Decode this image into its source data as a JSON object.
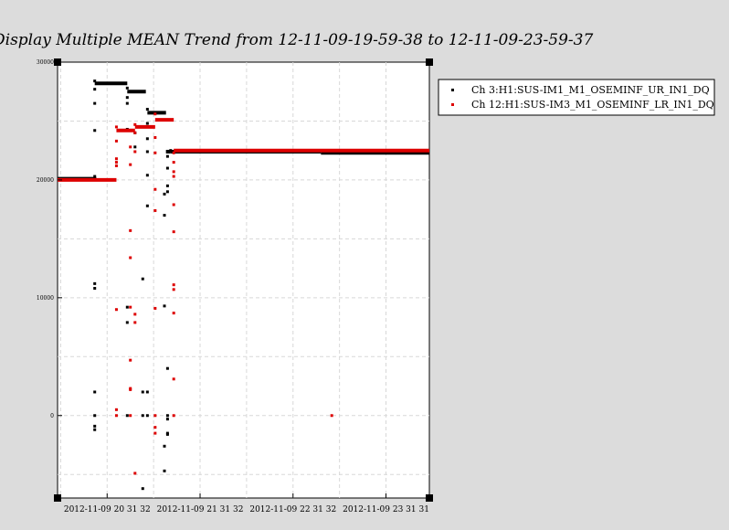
{
  "chart_data": {
    "type": "scatter",
    "title": "Display Multiple MEAN Trend from 12-11-09-19-59-38 to 12-11-09-23-59-37",
    "xlabel": "",
    "ylabel": "",
    "x_tick_labels": [
      "2012-11-09 20 31 32",
      "2012-11-09 21 31 32",
      "2012-11-09 22 31 32",
      "2012-11-09 23 31 31"
    ],
    "x_ticks_minutes": [
      32,
      92,
      152,
      212
    ],
    "xlim_minutes": [
      0,
      240
    ],
    "y_ticks": [
      0,
      10000,
      20000,
      30000
    ],
    "y_tick_labels": [
      "0",
      "10000",
      "20000",
      "30000"
    ],
    "ylim": [
      -7000,
      30000
    ],
    "grid": true,
    "legend_position": "outside-top-right",
    "series": [
      {
        "name": "Ch 3:H1:SUS-IM1_M1_OSEMINF_UR_IN1_DQ",
        "color": "#000000",
        "segments": [
          {
            "x0": 0,
            "x1": 25,
            "y": 20100
          },
          {
            "x0": 24,
            "x1": 45,
            "y": 28200
          },
          {
            "x0": 45,
            "x1": 57,
            "y": 27500
          },
          {
            "x0": 58,
            "x1": 70,
            "y": 25700
          },
          {
            "x0": 70,
            "x1": 73,
            "y": 22400
          },
          {
            "x0": 73,
            "x1": 170,
            "y": 22400
          },
          {
            "x0": 170,
            "x1": 240,
            "y": 22300
          }
        ],
        "points": [
          [
            24,
            28400
          ],
          [
            24,
            27700
          ],
          [
            24,
            26500
          ],
          [
            24,
            24200
          ],
          [
            24,
            20300
          ],
          [
            24,
            11200
          ],
          [
            24,
            10800
          ],
          [
            24,
            2000
          ],
          [
            24,
            0
          ],
          [
            24,
            -900
          ],
          [
            24,
            -1200
          ],
          [
            45,
            27800
          ],
          [
            45,
            27000
          ],
          [
            45,
            26500
          ],
          [
            45,
            24300
          ],
          [
            45,
            9200
          ],
          [
            45,
            7900
          ],
          [
            45,
            0
          ],
          [
            50,
            24000
          ],
          [
            50,
            22800
          ],
          [
            55,
            11600
          ],
          [
            55,
            2000
          ],
          [
            55,
            0
          ],
          [
            55,
            -6200
          ],
          [
            58,
            26000
          ],
          [
            58,
            24800
          ],
          [
            58,
            23500
          ],
          [
            58,
            22400
          ],
          [
            58,
            20400
          ],
          [
            58,
            17800
          ],
          [
            58,
            2000
          ],
          [
            58,
            0
          ],
          [
            69,
            18800
          ],
          [
            69,
            17000
          ],
          [
            69,
            9300
          ],
          [
            69,
            -2600
          ],
          [
            69,
            -4700
          ],
          [
            71,
            22400
          ],
          [
            71,
            22000
          ],
          [
            71,
            21000
          ],
          [
            71,
            19500
          ],
          [
            71,
            19000
          ],
          [
            71,
            4000
          ],
          [
            71,
            0
          ],
          [
            71,
            -300
          ],
          [
            71,
            -1500
          ],
          [
            71,
            -1600
          ],
          [
            73,
            22500
          ]
        ]
      },
      {
        "name": "Ch 12:H1:SUS-IM3_M1_OSEMINF_LR_IN1_DQ",
        "color": "#dd0000",
        "segments": [
          {
            "x0": 0,
            "x1": 38,
            "y": 20000
          },
          {
            "x0": 38,
            "x1": 50,
            "y": 24200
          },
          {
            "x0": 50,
            "x1": 63,
            "y": 24500
          },
          {
            "x0": 63,
            "x1": 75,
            "y": 25100
          },
          {
            "x0": 75,
            "x1": 240,
            "y": 22500
          }
        ],
        "points": [
          [
            38,
            24500
          ],
          [
            38,
            23300
          ],
          [
            38,
            21800
          ],
          [
            38,
            21500
          ],
          [
            38,
            21200
          ],
          [
            38,
            9000
          ],
          [
            38,
            500
          ],
          [
            38,
            0
          ],
          [
            47,
            24200
          ],
          [
            47,
            22800
          ],
          [
            47,
            21300
          ],
          [
            47,
            15700
          ],
          [
            47,
            13400
          ],
          [
            47,
            9200
          ],
          [
            47,
            4700
          ],
          [
            47,
            2300
          ],
          [
            47,
            2200
          ],
          [
            47,
            0
          ],
          [
            50,
            24700
          ],
          [
            50,
            24000
          ],
          [
            50,
            22400
          ],
          [
            50,
            8600
          ],
          [
            50,
            7900
          ],
          [
            50,
            -4900
          ],
          [
            63,
            25600
          ],
          [
            63,
            23600
          ],
          [
            63,
            22300
          ],
          [
            63,
            19200
          ],
          [
            63,
            17400
          ],
          [
            63,
            9100
          ],
          [
            63,
            0
          ],
          [
            63,
            -1000
          ],
          [
            63,
            -1500
          ],
          [
            75,
            22300
          ],
          [
            75,
            21500
          ],
          [
            75,
            20700
          ],
          [
            75,
            20300
          ],
          [
            75,
            17900
          ],
          [
            75,
            15600
          ],
          [
            75,
            11100
          ],
          [
            75,
            10700
          ],
          [
            75,
            8700
          ],
          [
            75,
            3100
          ],
          [
            75,
            0
          ],
          [
            177,
            0
          ]
        ]
      }
    ]
  }
}
